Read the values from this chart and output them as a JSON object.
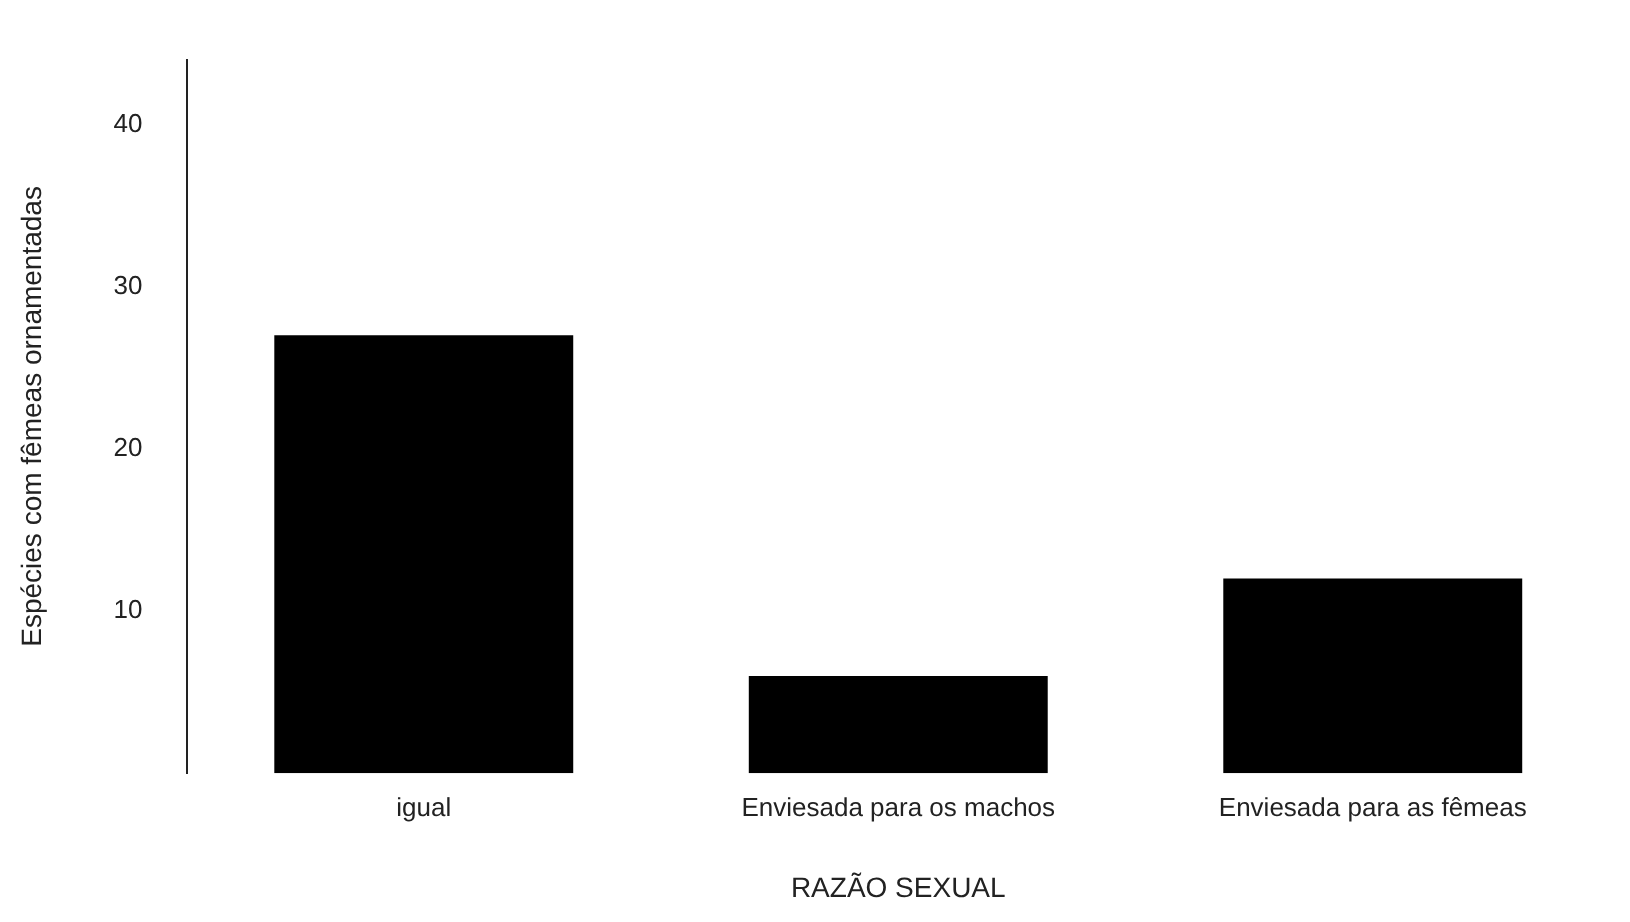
{
  "chart_data": {
    "type": "bar",
    "xlabel": "RAZÃO SEXUAL",
    "ylabel": "Espécies com fêmeas ornamentadas",
    "categories": [
      "igual",
      "Enviesada para os machos",
      "Enviesada para as fêmeas"
    ],
    "values": [
      27,
      6,
      12
    ],
    "color": "#000000",
    "ylim": [
      0,
      44
    ],
    "yticks": [
      10,
      20,
      30,
      40
    ],
    "grid": false,
    "legend": false
  }
}
